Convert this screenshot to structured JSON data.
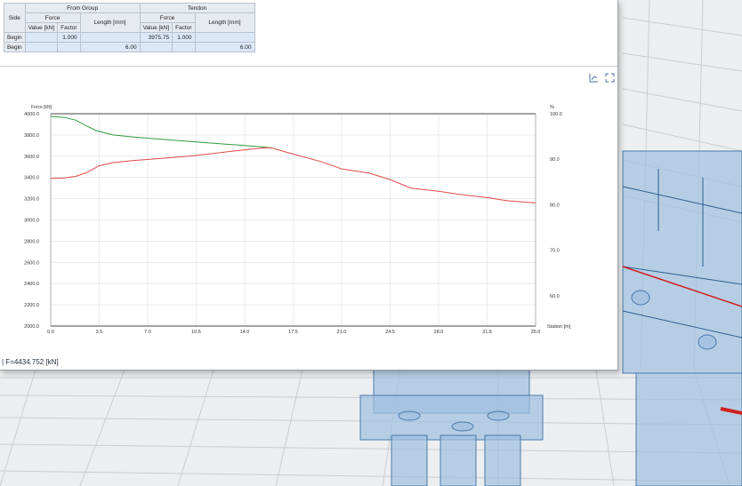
{
  "table": {
    "side_label": "Side",
    "group1_label": "From Group",
    "group2_label": "Tendon",
    "force_label": "Force",
    "length_label": "Length [mm]",
    "value_label": "Value [kN]",
    "factor_label": "Factor",
    "rows": [
      {
        "side": "Begin",
        "g_value": "",
        "g_factor": "1.000",
        "g_length": "",
        "t_value": "3975.75",
        "t_factor": "1.000",
        "t_length": ""
      },
      {
        "side": "Begin",
        "g_value": "",
        "g_factor": "",
        "g_length": "6.00",
        "t_value": "",
        "t_factor": "",
        "t_length": "6.00"
      }
    ]
  },
  "toolbar": {
    "icon1": "chart-settings-icon",
    "icon2": "fullscreen-icon"
  },
  "status_text": "| F=4434.752 [kN]",
  "chart_data": {
    "type": "line",
    "ylabel_left": "Force [kN]",
    "ylabel_right": "%",
    "xlabel": "Station [m]",
    "xlim": [
      0,
      35
    ],
    "ylim_left": [
      2000,
      4000
    ],
    "ylim_right": [
      53.33,
      100
    ],
    "x_ticks": [
      "0.0",
      "3.5",
      "7.0",
      "10.5",
      "14.0",
      "17.5",
      "21.0",
      "24.5",
      "28.0",
      "31.5",
      "35.0"
    ],
    "y_ticks_left": [
      "4000.0",
      "3800.0",
      "3600.0",
      "3400.0",
      "3200.0",
      "3000.0",
      "2800.0",
      "2600.0",
      "2400.0",
      "2200.0",
      "2000.0"
    ],
    "y_ticks_right": [
      "100.0",
      "90.0",
      "80.0",
      "70.0",
      "60.0"
    ],
    "grid": true,
    "colors": {
      "green": "#2e9a3e",
      "red": "#e04848"
    },
    "series": [
      {
        "color": "green",
        "x": [
          0,
          1,
          1.8,
          2.5,
          3.3,
          4.5,
          6,
          8,
          10,
          12,
          14,
          15.5,
          16
        ],
        "y": [
          3975,
          3965,
          3940,
          3890,
          3840,
          3800,
          3780,
          3760,
          3740,
          3720,
          3700,
          3685,
          3675
        ]
      },
      {
        "color": "red",
        "x": [
          0,
          1,
          1.8,
          2.5,
          3.5,
          4.5,
          6,
          8,
          10,
          12,
          14,
          15.5,
          16,
          17.5,
          19.5,
          21,
          23,
          24.5,
          26,
          28,
          29.5,
          31.5,
          33,
          35
        ],
        "y": [
          3390,
          3395,
          3410,
          3440,
          3510,
          3540,
          3560,
          3580,
          3600,
          3630,
          3660,
          3680,
          3675,
          3620,
          3550,
          3480,
          3440,
          3380,
          3300,
          3270,
          3240,
          3210,
          3180,
          3160
        ]
      }
    ]
  }
}
